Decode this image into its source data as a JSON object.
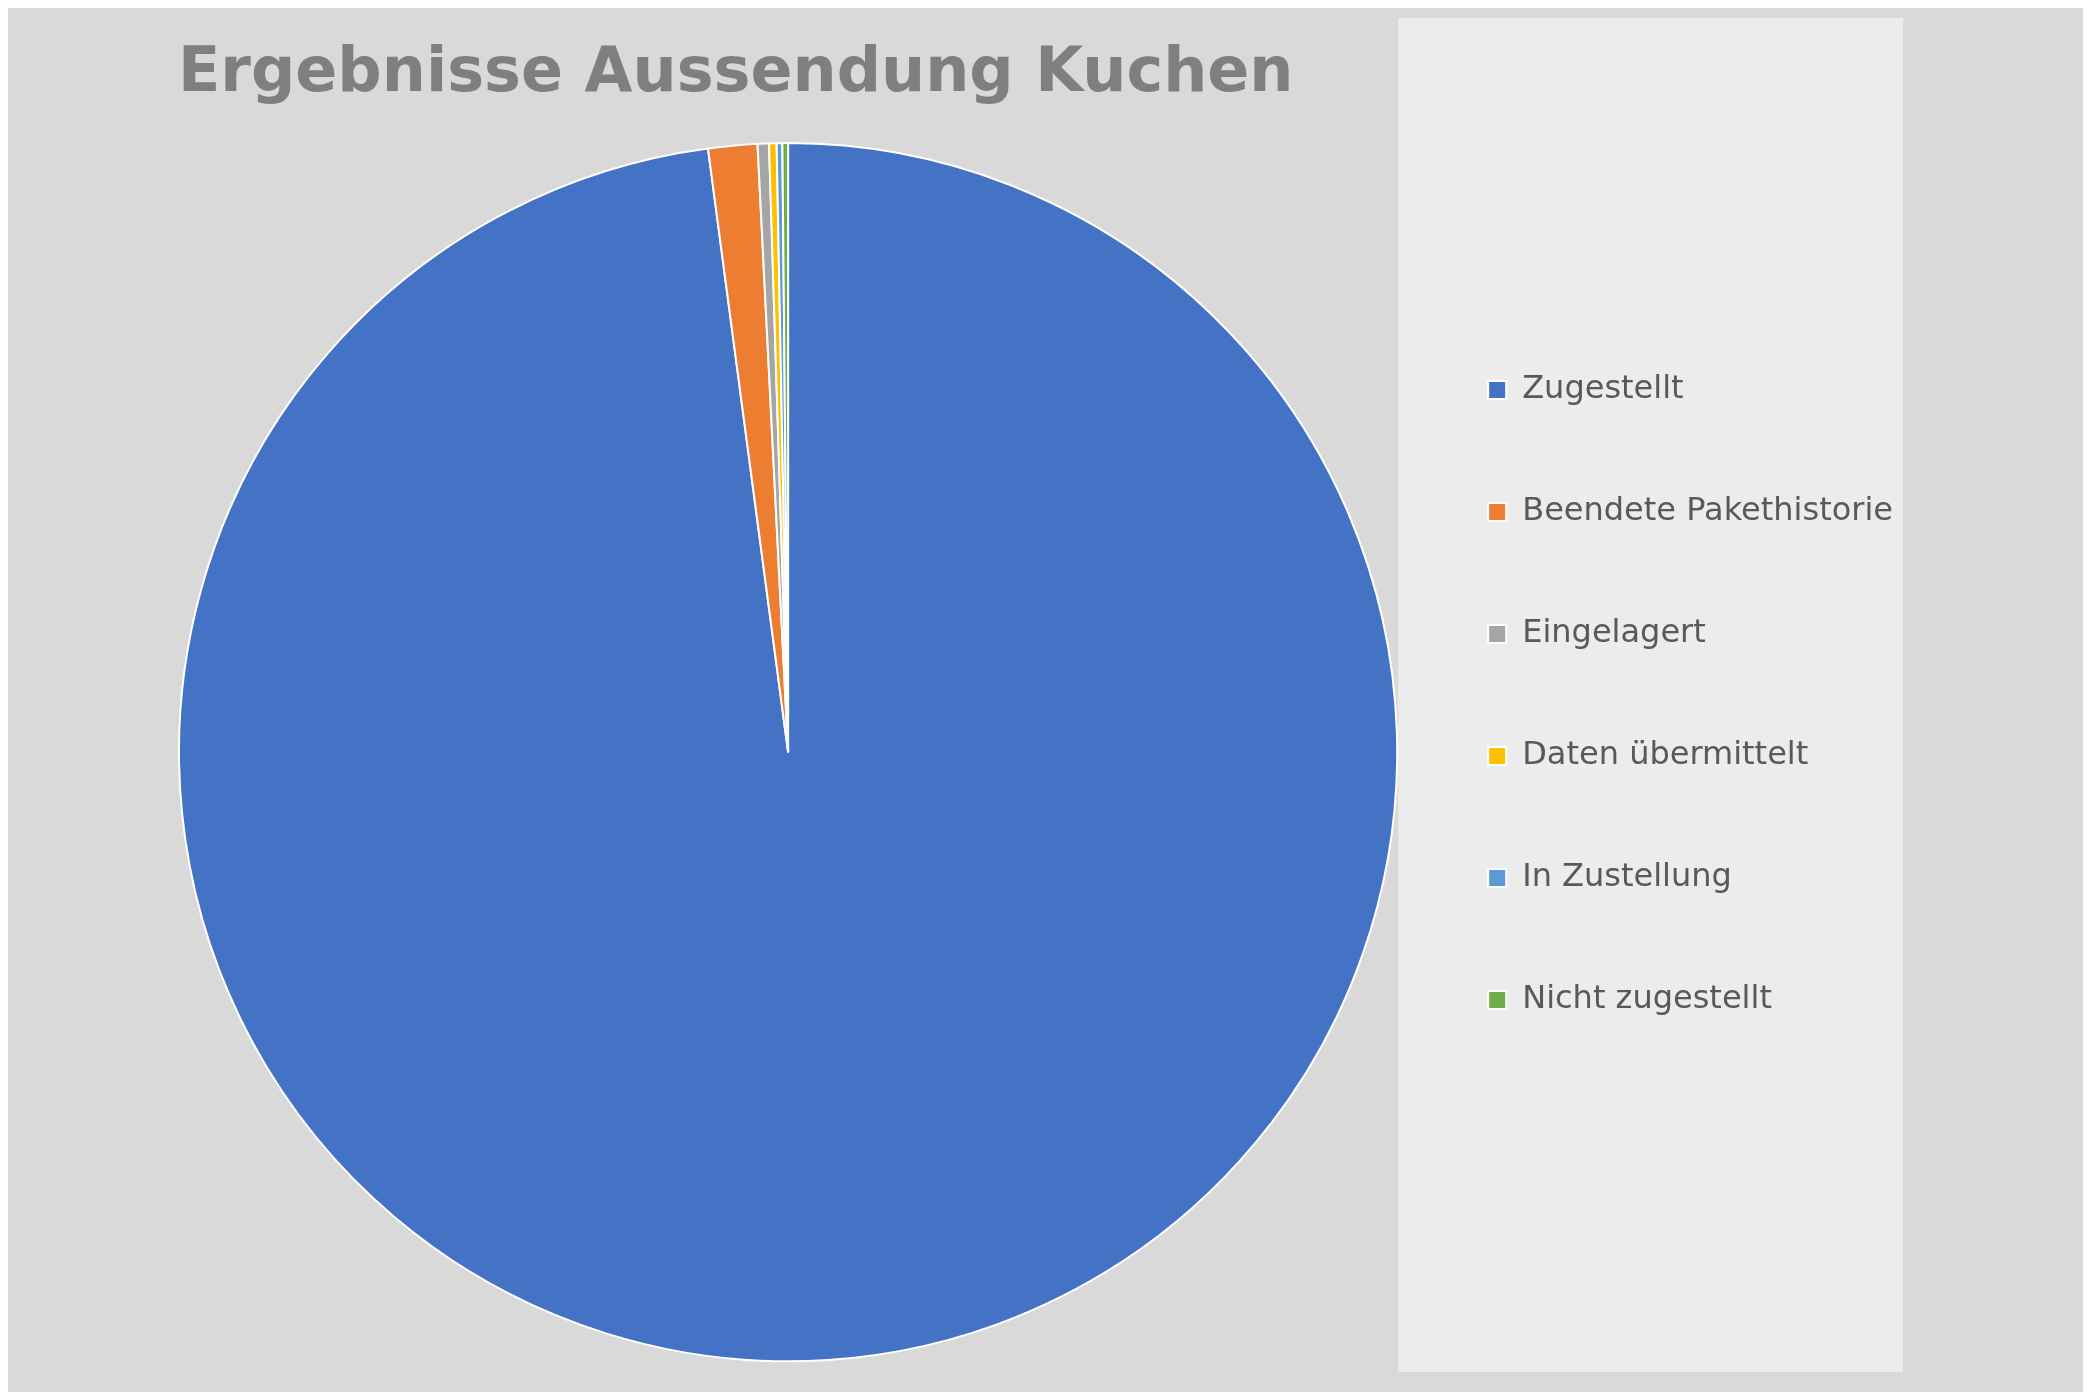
{
  "chart_data": {
    "type": "pie",
    "title": "Ergebnisse Aussendung Kuchen",
    "categories": [
      "Zugestellt",
      "Beendete Pakethistorie",
      "Eingelagert",
      "Daten übermittelt",
      "In Zustellung",
      "Nicht zugestellt"
    ],
    "values": [
      97.9,
      1.3,
      0.3,
      0.2,
      0.15,
      0.15
    ],
    "colors": [
      "#4472c4",
      "#ed7d31",
      "#a5a5a5",
      "#ffc000",
      "#5b9bd5",
      "#70ad47"
    ],
    "legend": "right"
  }
}
